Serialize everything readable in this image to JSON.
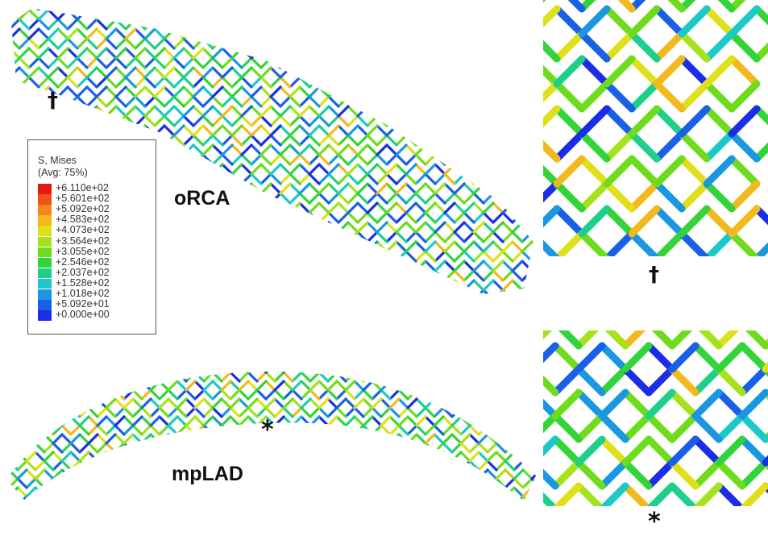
{
  "legend": {
    "title_line1": "S, Mises",
    "title_line2": "(Avg: 75%)",
    "entries": [
      {
        "value": "+6.110e+02",
        "color": "#e8170f"
      },
      {
        "value": "+5.601e+02",
        "color": "#f0521a"
      },
      {
        "value": "+5.092e+02",
        "color": "#f5861e"
      },
      {
        "value": "+4.583e+02",
        "color": "#f2b81c"
      },
      {
        "value": "+4.073e+02",
        "color": "#dfe01a"
      },
      {
        "value": "+3.564e+02",
        "color": "#a6e21b"
      },
      {
        "value": "+3.055e+02",
        "color": "#6edc1d"
      },
      {
        "value": "+2.546e+02",
        "color": "#33d43a"
      },
      {
        "value": "+2.037e+02",
        "color": "#1ecf8a"
      },
      {
        "value": "+1.528e+02",
        "color": "#1bc9c9"
      },
      {
        "value": "+1.018e+02",
        "color": "#1a97e0"
      },
      {
        "value": "+5.092e+01",
        "color": "#1a5fe8"
      },
      {
        "value": "+0.000e+00",
        "color": "#1b2ee6"
      }
    ]
  },
  "labels": {
    "top_vessel": "oRCA",
    "bottom_vessel": "mpLAD"
  },
  "markers": {
    "dagger": "†",
    "asterisk": "*"
  }
}
